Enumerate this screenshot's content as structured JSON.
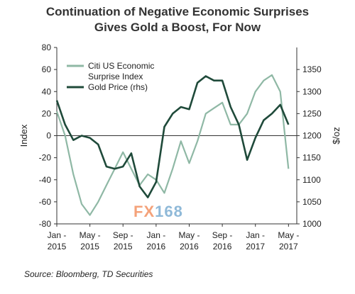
{
  "title_line1": "Continuation of Negative Economic Surprises",
  "title_line2": "Gives Gold a Boost, For Now",
  "source": "Source: Bloomberg, TD Securities",
  "watermark": {
    "part1": "FX",
    "part2": "168"
  },
  "colors": {
    "citi": "#8fb8a5",
    "gold": "#1f4a3a",
    "axis": "#333333"
  },
  "chart_data": {
    "type": "line",
    "ylabel_left": "Index",
    "ylabel_right": "$/oz",
    "ylim_left": [
      -80,
      80
    ],
    "yticks_left": [
      80,
      60,
      40,
      20,
      0,
      -20,
      -40,
      -60,
      -80
    ],
    "ylim_right": [
      1000,
      1400
    ],
    "yticks_right": [
      1350,
      1300,
      1250,
      1200,
      1150,
      1100,
      1050,
      1000
    ],
    "xlim": [
      "2015-01",
      "2017-06"
    ],
    "xticks": [
      {
        "month": "2015-01",
        "label1": "Jan -",
        "label2": "2015"
      },
      {
        "month": "2015-05",
        "label1": "May -",
        "label2": "2015"
      },
      {
        "month": "2015-09",
        "label1": "Sep -",
        "label2": "2015"
      },
      {
        "month": "2016-01",
        "label1": "Jan -",
        "label2": "2016"
      },
      {
        "month": "2016-05",
        "label1": "May -",
        "label2": "2016"
      },
      {
        "month": "2016-09",
        "label1": "Sep -",
        "label2": "2016"
      },
      {
        "month": "2017-01",
        "label1": "Jan -",
        "label2": "2017"
      },
      {
        "month": "2017-05",
        "label1": "May -",
        "label2": "2017"
      }
    ],
    "legend_position": "top-left",
    "series": [
      {
        "name": "Citi US Economic Surprise Index",
        "legend_lines": [
          "Citi US Economic",
          "Surprise Index"
        ],
        "axis": "left",
        "x": [
          "2015-01",
          "2015-02",
          "2015-03",
          "2015-04",
          "2015-05",
          "2015-06",
          "2015-07",
          "2015-08",
          "2015-09",
          "2015-10",
          "2015-11",
          "2015-12",
          "2016-01",
          "2016-02",
          "2016-03",
          "2016-04",
          "2016-05",
          "2016-06",
          "2016-07",
          "2016-08",
          "2016-09",
          "2016-10",
          "2016-11",
          "2016-12",
          "2017-01",
          "2017-02",
          "2017-03",
          "2017-04",
          "2017-05"
        ],
        "values": [
          22,
          0,
          -35,
          -62,
          -72,
          -60,
          -45,
          -30,
          -15,
          -30,
          -45,
          -35,
          -40,
          -52,
          -30,
          -5,
          -25,
          -5,
          20,
          25,
          30,
          10,
          10,
          20,
          40,
          50,
          55,
          40,
          -30
        ]
      },
      {
        "name": "Gold Price (rhs)",
        "legend_lines": [
          "Gold Price (rhs)"
        ],
        "axis": "right",
        "x": [
          "2015-01",
          "2015-02",
          "2015-03",
          "2015-04",
          "2015-05",
          "2015-06",
          "2015-07",
          "2015-08",
          "2015-09",
          "2015-10",
          "2015-11",
          "2015-12",
          "2016-01",
          "2016-02",
          "2016-03",
          "2016-04",
          "2016-05",
          "2016-06",
          "2016-07",
          "2016-08",
          "2016-09",
          "2016-10",
          "2016-11",
          "2016-12",
          "2017-01",
          "2017-02",
          "2017-03",
          "2017-04",
          "2017-05"
        ],
        "values": [
          1280,
          1225,
          1190,
          1200,
          1195,
          1180,
          1130,
          1125,
          1130,
          1160,
          1085,
          1060,
          1095,
          1220,
          1250,
          1265,
          1260,
          1320,
          1335,
          1325,
          1325,
          1265,
          1225,
          1145,
          1195,
          1235,
          1250,
          1270,
          1225
        ]
      }
    ]
  }
}
